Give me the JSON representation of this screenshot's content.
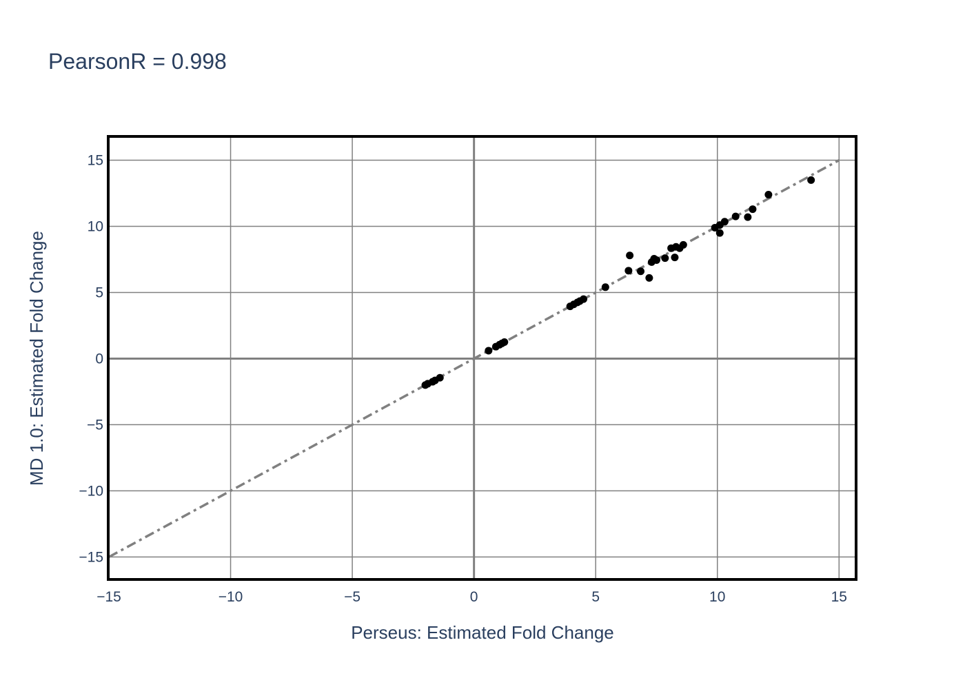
{
  "chart_data": {
    "type": "scatter",
    "title": "PearsonR = 0.998",
    "xlabel": "Perseus: Estimated Fold Change",
    "ylabel": "MD 1.0: Estimated Fold Change",
    "xlim": [
      -15,
      15.7
    ],
    "ylim": [
      -16.7,
      16.8
    ],
    "xticks": [
      -15,
      -10,
      -5,
      0,
      5,
      10,
      15
    ],
    "yticks": [
      -15,
      -10,
      -5,
      0,
      5,
      10,
      15
    ],
    "xtick_labels": [
      "−15",
      "−10",
      "−5",
      "0",
      "5",
      "10",
      "15"
    ],
    "ytick_labels": [
      "−15",
      "−10",
      "−5",
      "0",
      "5",
      "10",
      "15"
    ],
    "grid": true,
    "reference_line": {
      "style": "dashdot",
      "color": "#808080",
      "x": [
        -15,
        15
      ],
      "y": [
        -15,
        15
      ]
    },
    "colors": {
      "points": "#000000",
      "grid": "#808080",
      "zero_line": "#808080",
      "frame": "#000000",
      "text": "#2a3f5f"
    },
    "points": [
      {
        "x": -2.0,
        "y": -2.0
      },
      {
        "x": -1.9,
        "y": -1.9
      },
      {
        "x": -1.7,
        "y": -1.75
      },
      {
        "x": -1.6,
        "y": -1.65
      },
      {
        "x": -1.4,
        "y": -1.45
      },
      {
        "x": 0.6,
        "y": 0.6
      },
      {
        "x": 0.9,
        "y": 0.9
      },
      {
        "x": 1.05,
        "y": 1.05
      },
      {
        "x": 1.15,
        "y": 1.15
      },
      {
        "x": 1.25,
        "y": 1.25
      },
      {
        "x": 3.95,
        "y": 3.95
      },
      {
        "x": 4.1,
        "y": 4.1
      },
      {
        "x": 4.25,
        "y": 4.25
      },
      {
        "x": 4.35,
        "y": 4.35
      },
      {
        "x": 4.5,
        "y": 4.5
      },
      {
        "x": 5.4,
        "y": 5.4
      },
      {
        "x": 6.35,
        "y": 6.65
      },
      {
        "x": 6.4,
        "y": 7.8
      },
      {
        "x": 6.85,
        "y": 6.6
      },
      {
        "x": 7.2,
        "y": 6.1
      },
      {
        "x": 7.3,
        "y": 7.3
      },
      {
        "x": 7.4,
        "y": 7.55
      },
      {
        "x": 7.5,
        "y": 7.45
      },
      {
        "x": 7.85,
        "y": 7.6
      },
      {
        "x": 8.1,
        "y": 8.35
      },
      {
        "x": 8.25,
        "y": 7.65
      },
      {
        "x": 8.3,
        "y": 8.45
      },
      {
        "x": 8.45,
        "y": 8.35
      },
      {
        "x": 8.6,
        "y": 8.6
      },
      {
        "x": 9.9,
        "y": 9.9
      },
      {
        "x": 10.1,
        "y": 10.1
      },
      {
        "x": 10.1,
        "y": 9.5
      },
      {
        "x": 10.3,
        "y": 10.35
      },
      {
        "x": 10.75,
        "y": 10.75
      },
      {
        "x": 11.25,
        "y": 10.7
      },
      {
        "x": 11.45,
        "y": 11.3
      },
      {
        "x": 12.1,
        "y": 12.4
      },
      {
        "x": 13.85,
        "y": 13.5
      }
    ]
  }
}
